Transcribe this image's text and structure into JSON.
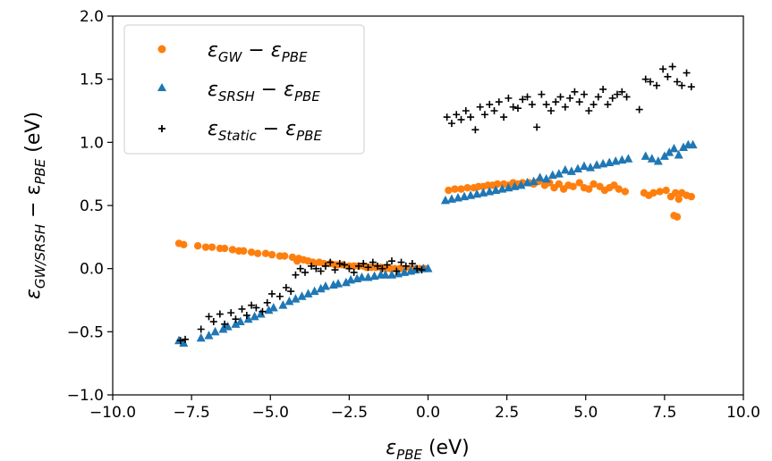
{
  "chart_data": {
    "type": "scatter",
    "xlim": [
      -10.0,
      10.0
    ],
    "ylim": [
      -1.0,
      2.0
    ],
    "xticks": [
      "−10.0",
      "−7.5",
      "−5.0",
      "−2.5",
      "0.0",
      "2.5",
      "5.0",
      "7.5",
      "10.0"
    ],
    "xtick_values": [
      -10.0,
      -7.5,
      -5.0,
      -2.5,
      0.0,
      2.5,
      5.0,
      7.5,
      10.0
    ],
    "yticks": [
      "−1.0",
      "−0.5",
      "0.0",
      "0.5",
      "1.0",
      "1.5",
      "2.0"
    ],
    "ytick_values": [
      -1.0,
      -0.5,
      0.0,
      0.5,
      1.0,
      1.5,
      2.0
    ],
    "xlabel": {
      "main": "ε",
      "sub": "PBE",
      "unit": " (eV)"
    },
    "ylabel": {
      "main": "ε",
      "sub": "GW/SRSH",
      "rest": " − ε",
      "sub2": "PBE",
      "unit": " (eV)"
    },
    "grid": false,
    "legend_position": "upper-left",
    "series": [
      {
        "name": "ε_GW − ε_PBE",
        "legend": {
          "a": "ε",
          "a_sub": "GW",
          "b": "ε",
          "b_sub": "PBE"
        },
        "marker": "circle",
        "color": "#ff7f0e",
        "x": [
          -7.9,
          -7.75,
          -7.3,
          -7.05,
          -6.85,
          -6.6,
          -6.45,
          -6.2,
          -6.0,
          -5.85,
          -5.6,
          -5.4,
          -5.15,
          -4.95,
          -4.7,
          -4.55,
          -4.3,
          -4.1,
          -4.15,
          -3.95,
          -3.8,
          -3.65,
          -3.45,
          -3.3,
          -3.1,
          -2.95,
          -2.85,
          -2.7,
          -2.5,
          -2.35,
          -2.2,
          -2.05,
          -1.95,
          -1.8,
          -1.65,
          -1.5,
          -1.35,
          -1.2,
          -1.05,
          -0.9,
          -0.75,
          -0.55,
          -0.4,
          -0.25,
          -0.1,
          0.65,
          0.85,
          1.05,
          1.25,
          1.45,
          1.6,
          1.75,
          1.9,
          2.05,
          2.2,
          2.4,
          2.55,
          2.7,
          2.85,
          3.0,
          3.2,
          3.35,
          3.5,
          3.7,
          3.85,
          4.0,
          4.15,
          4.3,
          4.45,
          4.6,
          4.8,
          4.95,
          5.1,
          5.25,
          5.45,
          5.6,
          5.75,
          5.9,
          6.05,
          6.25,
          6.85,
          7.0,
          7.15,
          7.35,
          7.55,
          7.7,
          7.8,
          7.9,
          7.85,
          7.95,
          8.05,
          8.2,
          8.35
        ],
        "y": [
          0.2,
          0.19,
          0.18,
          0.17,
          0.17,
          0.16,
          0.16,
          0.15,
          0.14,
          0.14,
          0.13,
          0.12,
          0.12,
          0.11,
          0.1,
          0.1,
          0.09,
          0.08,
          0.06,
          0.07,
          0.06,
          0.05,
          0.05,
          0.04,
          0.04,
          0.03,
          0.03,
          0.03,
          0.02,
          0.02,
          0.02,
          0.02,
          0.01,
          0.01,
          0.01,
          0.01,
          0.0,
          0.0,
          0.0,
          0.0,
          0.0,
          0.0,
          0.0,
          0.0,
          0.0,
          0.62,
          0.63,
          0.63,
          0.64,
          0.64,
          0.65,
          0.65,
          0.66,
          0.66,
          0.67,
          0.67,
          0.66,
          0.68,
          0.67,
          0.68,
          0.68,
          0.67,
          0.69,
          0.66,
          0.68,
          0.64,
          0.67,
          0.63,
          0.66,
          0.65,
          0.68,
          0.64,
          0.63,
          0.67,
          0.65,
          0.62,
          0.64,
          0.66,
          0.63,
          0.61,
          0.6,
          0.58,
          0.6,
          0.61,
          0.62,
          0.57,
          0.42,
          0.41,
          0.6,
          0.55,
          0.6,
          0.58,
          0.57
        ]
      },
      {
        "name": "ε_SRSH − ε_PBE",
        "legend": {
          "a": "ε",
          "a_sub": "SRSH",
          "b": "ε",
          "b_sub": "PBE"
        },
        "marker": "triangle",
        "color": "#1f77b4",
        "x": [
          -7.9,
          -7.75,
          -7.2,
          -6.95,
          -6.75,
          -6.5,
          -6.35,
          -6.1,
          -5.95,
          -5.7,
          -5.5,
          -5.3,
          -5.05,
          -4.9,
          -4.6,
          -4.4,
          -4.2,
          -4.0,
          -3.8,
          -3.6,
          -3.4,
          -3.25,
          -3.0,
          -2.85,
          -2.6,
          -2.45,
          -2.25,
          -2.1,
          -1.9,
          -1.7,
          -1.5,
          -1.35,
          -1.15,
          -0.95,
          -0.75,
          -0.55,
          -0.4,
          -0.15,
          0.0,
          0.55,
          0.75,
          0.95,
          1.15,
          1.35,
          1.55,
          1.75,
          1.95,
          2.15,
          2.35,
          2.55,
          2.75,
          2.95,
          3.15,
          3.35,
          3.55,
          3.75,
          3.95,
          4.15,
          4.35,
          4.55,
          4.75,
          4.95,
          5.15,
          5.35,
          5.55,
          5.75,
          5.95,
          6.15,
          6.35,
          6.9,
          7.1,
          7.3,
          7.5,
          7.65,
          7.8,
          7.95,
          8.1,
          8.25,
          8.4
        ],
        "y": [
          -0.57,
          -0.59,
          -0.55,
          -0.53,
          -0.5,
          -0.48,
          -0.46,
          -0.44,
          -0.42,
          -0.4,
          -0.38,
          -0.36,
          -0.33,
          -0.31,
          -0.29,
          -0.26,
          -0.24,
          -0.22,
          -0.2,
          -0.18,
          -0.16,
          -0.14,
          -0.13,
          -0.12,
          -0.11,
          -0.09,
          -0.08,
          -0.07,
          -0.07,
          -0.06,
          -0.05,
          -0.05,
          -0.05,
          -0.04,
          -0.03,
          -0.02,
          -0.01,
          0.0,
          0.0,
          0.54,
          0.55,
          0.56,
          0.57,
          0.58,
          0.59,
          0.6,
          0.61,
          0.62,
          0.63,
          0.64,
          0.65,
          0.66,
          0.68,
          0.69,
          0.72,
          0.71,
          0.74,
          0.75,
          0.78,
          0.77,
          0.79,
          0.81,
          0.8,
          0.82,
          0.83,
          0.84,
          0.85,
          0.86,
          0.87,
          0.89,
          0.87,
          0.85,
          0.89,
          0.92,
          0.95,
          0.9,
          0.96,
          0.98,
          0.98
        ]
      },
      {
        "name": "ε_Static − ε_PBE",
        "legend": {
          "a": "ε",
          "a_sub": "Static",
          "b": "ε",
          "b_sub": "PBE"
        },
        "marker": "plus",
        "color": "#000000",
        "x": [
          -7.85,
          -7.7,
          -7.2,
          -6.95,
          -6.8,
          -6.6,
          -6.45,
          -6.25,
          -6.1,
          -5.9,
          -5.75,
          -5.6,
          -5.45,
          -5.25,
          -5.1,
          -4.95,
          -4.7,
          -4.5,
          -4.35,
          -4.2,
          -4.05,
          -3.9,
          -3.7,
          -3.55,
          -3.4,
          -3.25,
          -3.1,
          -2.95,
          -2.8,
          -2.65,
          -2.5,
          -2.35,
          -2.2,
          -2.05,
          -1.9,
          -1.75,
          -1.6,
          -1.45,
          -1.3,
          -1.15,
          -1.0,
          -0.85,
          -0.7,
          -0.5,
          -0.35,
          -0.2,
          0.6,
          0.75,
          0.9,
          1.05,
          1.2,
          1.35,
          1.5,
          1.65,
          1.8,
          1.95,
          2.1,
          2.25,
          2.4,
          2.55,
          2.7,
          2.85,
          3.0,
          3.15,
          3.3,
          3.45,
          3.6,
          3.75,
          3.9,
          4.05,
          4.2,
          4.35,
          4.5,
          4.65,
          4.8,
          4.95,
          5.1,
          5.25,
          5.4,
          5.55,
          5.7,
          5.85,
          6.0,
          6.15,
          6.3,
          6.7,
          6.9,
          7.05,
          7.25,
          7.45,
          7.6,
          7.75,
          7.9,
          8.05,
          8.2,
          8.35
        ],
        "y": [
          -0.57,
          -0.56,
          -0.48,
          -0.38,
          -0.42,
          -0.36,
          -0.44,
          -0.35,
          -0.4,
          -0.32,
          -0.37,
          -0.29,
          -0.31,
          -0.34,
          -0.27,
          -0.2,
          -0.22,
          -0.15,
          -0.18,
          -0.05,
          0.0,
          -0.03,
          0.02,
          0.0,
          -0.02,
          0.02,
          0.05,
          -0.01,
          0.04,
          0.03,
          0.0,
          -0.03,
          0.02,
          0.04,
          0.01,
          0.05,
          0.02,
          0.0,
          0.03,
          0.06,
          -0.02,
          0.05,
          0.02,
          0.04,
          0.0,
          -0.01,
          1.2,
          1.15,
          1.22,
          1.18,
          1.25,
          1.2,
          1.1,
          1.28,
          1.22,
          1.3,
          1.25,
          1.32,
          1.2,
          1.35,
          1.28,
          1.27,
          1.34,
          1.36,
          1.3,
          1.12,
          1.38,
          1.3,
          1.25,
          1.32,
          1.36,
          1.28,
          1.35,
          1.4,
          1.32,
          1.38,
          1.25,
          1.3,
          1.36,
          1.42,
          1.3,
          1.35,
          1.38,
          1.4,
          1.36,
          1.26,
          1.5,
          1.48,
          1.45,
          1.58,
          1.52,
          1.6,
          1.48,
          1.45,
          1.55,
          1.44
        ]
      }
    ]
  }
}
